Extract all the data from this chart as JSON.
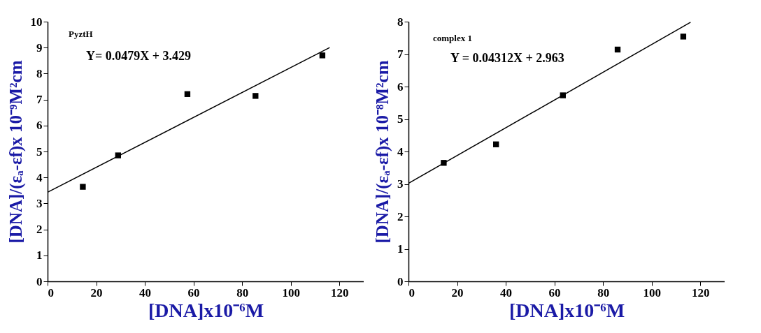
{
  "chart_data": [
    {
      "type": "scatter",
      "title": "PyztH",
      "annotations": [
        "Y= 0.0479X + 3.429"
      ],
      "xlabel": "[DNA]x10⁻⁶M",
      "ylabel": "[DNA]/(εₐ-εf)x 10⁻⁹M²cm",
      "xlim": [
        0,
        130
      ],
      "xticks": [
        0,
        20,
        40,
        60,
        80,
        100,
        120
      ],
      "ylim": [
        0,
        10
      ],
      "yticks": [
        0,
        1,
        2,
        3,
        4,
        5,
        6,
        7,
        8,
        9,
        10
      ],
      "grid": false,
      "series": [
        {
          "type": "scatter",
          "marker": "square",
          "color": "#000000",
          "x": [
            14.5,
            29,
            57.5,
            85.5,
            113
          ],
          "values": [
            3.64,
            4.85,
            7.21,
            7.14,
            8.7
          ]
        },
        {
          "type": "line",
          "marker": "none",
          "color": "#000000",
          "x": [
            0,
            116
          ],
          "values": [
            3.43,
            9.0
          ]
        }
      ]
    },
    {
      "type": "scatter",
      "title": "complex 1",
      "annotations": [
        "Y = 0.04312X + 2.963"
      ],
      "xlabel": "[DNA]x10⁻⁶M",
      "ylabel": "[DNA]/(εₐ-εf)x 10⁻⁸M²cm",
      "xlim": [
        0,
        130
      ],
      "xticks": [
        0,
        20,
        40,
        60,
        80,
        100,
        120
      ],
      "ylim": [
        0,
        8
      ],
      "yticks": [
        0,
        1,
        2,
        3,
        4,
        5,
        6,
        7,
        8
      ],
      "grid": false,
      "series": [
        {
          "type": "scatter",
          "marker": "square",
          "color": "#000000",
          "x": [
            14.5,
            36,
            63.5,
            86,
            113
          ],
          "values": [
            3.65,
            4.22,
            5.73,
            7.14,
            7.54
          ]
        },
        {
          "type": "line",
          "marker": "none",
          "color": "#000000",
          "x": [
            0,
            116
          ],
          "values": [
            3.02,
            7.98
          ]
        }
      ]
    }
  ]
}
